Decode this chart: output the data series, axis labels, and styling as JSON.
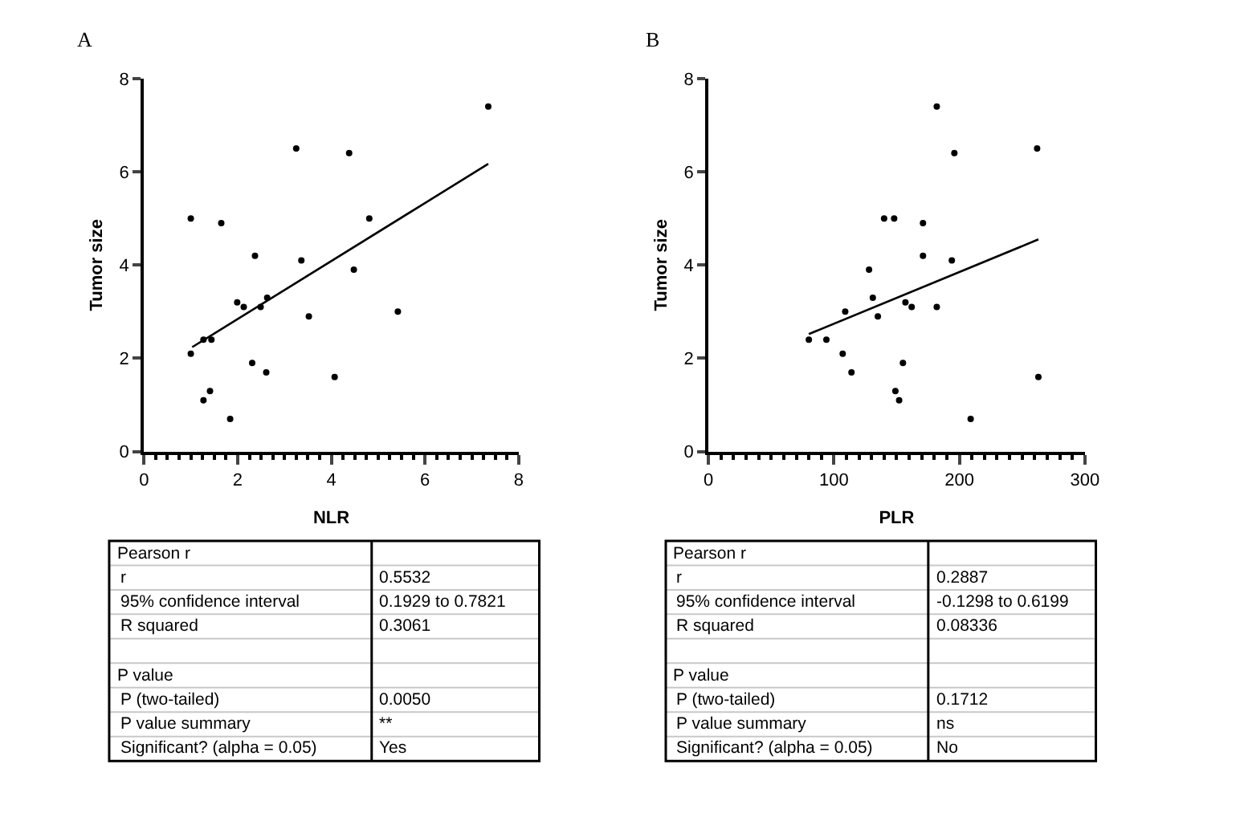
{
  "chart_data": [
    {
      "type": "scatter",
      "title": "A",
      "xlabel": "NLR",
      "ylabel": "Tumor size",
      "xlim": [
        0,
        8
      ],
      "ylim": [
        0,
        8
      ],
      "xticks": [
        0,
        {
          "value": 0.25,
          "label": null
        },
        {
          "value": 0.5,
          "label": null
        },
        {
          "value": 0.75,
          "label": null
        },
        {
          "value": 1,
          "label": null
        },
        {
          "value": 1.25,
          "label": null
        },
        {
          "value": 1.5,
          "label": null
        },
        {
          "value": 1.75,
          "label": null
        },
        2,
        {
          "value": 2.25,
          "label": null
        },
        {
          "value": 2.5,
          "label": null
        },
        {
          "value": 2.75,
          "label": null
        },
        {
          "value": 3,
          "label": null
        },
        {
          "value": 3.25,
          "label": null
        },
        {
          "value": 3.5,
          "label": null
        },
        {
          "value": 3.75,
          "label": null
        },
        4,
        {
          "value": 4.25,
          "label": null
        },
        {
          "value": 4.5,
          "label": null
        },
        {
          "value": 4.75,
          "label": null
        },
        {
          "value": 5,
          "label": null
        },
        {
          "value": 5.25,
          "label": null
        },
        {
          "value": 5.5,
          "label": null
        },
        {
          "value": 5.75,
          "label": null
        },
        6,
        {
          "value": 6.25,
          "label": null
        },
        {
          "value": 6.5,
          "label": null
        },
        {
          "value": 6.75,
          "label": null
        },
        {
          "value": 7,
          "label": null
        },
        {
          "value": 7.25,
          "label": null
        },
        {
          "value": 7.5,
          "label": null
        },
        {
          "value": 7.75,
          "label": null
        },
        8
      ],
      "yticks": [
        0,
        2,
        4,
        6,
        8
      ],
      "series": [
        {
          "marker": "circle",
          "color": "#000000",
          "x": [
            1.0,
            1.0,
            1.27,
            1.27,
            1.44,
            1.41,
            1.65,
            1.84,
            1.99,
            2.13,
            2.31,
            2.37,
            2.49,
            2.63,
            2.61,
            3.25,
            3.36,
            3.52,
            4.07,
            4.38,
            4.48,
            4.81,
            5.42,
            7.35
          ],
          "values": [
            2.1,
            5.0,
            1.1,
            2.4,
            2.4,
            1.3,
            4.9,
            0.7,
            3.2,
            3.1,
            1.9,
            4.2,
            3.1,
            3.3,
            1.7,
            6.5,
            4.1,
            2.9,
            1.6,
            6.4,
            3.9,
            5.0,
            3.0,
            7.4
          ]
        },
        {
          "type": "line",
          "marker": "none",
          "color": "#000000",
          "x": [
            1.03,
            7.35
          ],
          "values": [
            2.24,
            6.17
          ]
        }
      ],
      "annotations": [
        "Pearson r",
        "r",
        "0.5532",
        "95% confidence interval",
        "0.1929 to 0.7821",
        "R squared",
        "0.3061",
        "P value",
        "P (two-tailed)",
        "0.0050",
        "P value summary",
        "**",
        "Significant? (alpha = 0.05)",
        "Yes"
      ]
    },
    {
      "type": "scatter",
      "title": "B",
      "xlabel": "PLR",
      "ylabel": "Tumor size",
      "xlim": [
        0,
        300
      ],
      "ylim": [
        0,
        8
      ],
      "xticks": [
        0,
        {
          "value": 10,
          "label": null
        },
        {
          "value": 20,
          "label": null
        },
        {
          "value": 30,
          "label": null
        },
        {
          "value": 40,
          "label": null
        },
        {
          "value": 50,
          "label": null
        },
        {
          "value": 60,
          "label": null
        },
        {
          "value": 70,
          "label": null
        },
        {
          "value": 80,
          "label": null
        },
        {
          "value": 90,
          "label": null
        },
        100,
        {
          "value": 110,
          "label": null
        },
        {
          "value": 120,
          "label": null
        },
        {
          "value": 130,
          "label": null
        },
        {
          "value": 140,
          "label": null
        },
        {
          "value": 150,
          "label": null
        },
        {
          "value": 160,
          "label": null
        },
        {
          "value": 170,
          "label": null
        },
        {
          "value": 180,
          "label": null
        },
        {
          "value": 190,
          "label": null
        },
        200,
        {
          "value": 210,
          "label": null
        },
        {
          "value": 220,
          "label": null
        },
        {
          "value": 230,
          "label": null
        },
        {
          "value": 240,
          "label": null
        },
        {
          "value": 250,
          "label": null
        },
        {
          "value": 260,
          "label": null
        },
        {
          "value": 270,
          "label": null
        },
        {
          "value": 280,
          "label": null
        },
        {
          "value": 290,
          "label": null
        },
        300
      ],
      "yticks": [
        0,
        2,
        4,
        6,
        8
      ],
      "series": [
        {
          "marker": "circle",
          "color": "#000000",
          "x": [
            80,
            94,
            109,
            107,
            114,
            128,
            131,
            135,
            140,
            148,
            149,
            152,
            155,
            157,
            162,
            171,
            171,
            182,
            182,
            194,
            196,
            209,
            262,
            263
          ],
          "values": [
            2.4,
            2.4,
            3.0,
            2.1,
            1.7,
            3.9,
            3.3,
            2.9,
            5.0,
            5.0,
            1.3,
            1.1,
            1.9,
            3.2,
            3.1,
            4.9,
            4.2,
            3.1,
            7.4,
            4.1,
            6.4,
            0.7,
            6.5,
            1.6
          ]
        },
        {
          "type": "line",
          "marker": "none",
          "color": "#000000",
          "x": [
            80,
            263
          ],
          "values": [
            2.52,
            4.55
          ]
        }
      ],
      "annotations": [
        "Pearson r",
        "r",
        "0.2887",
        "95% confidence interval",
        "-0.1298 to 0.6199",
        "R squared",
        "0.08336",
        "P value",
        "P (two-tailed)",
        "0.1712",
        "P value summary",
        "ns",
        "Significant? (alpha = 0.05)",
        "No"
      ]
    }
  ]
}
